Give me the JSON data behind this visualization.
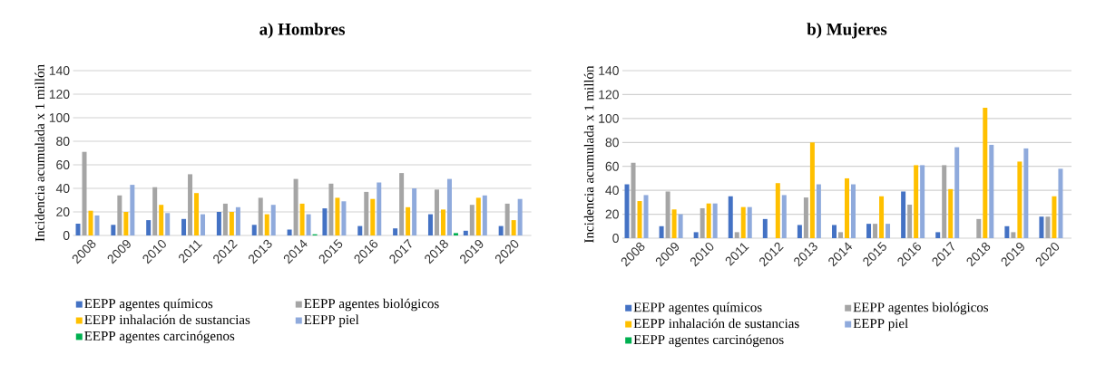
{
  "chart_data": [
    {
      "type": "bar",
      "title": "a) Hombres",
      "ylabel": "Incidencia acumulada x 1 millón",
      "categories": [
        "2008",
        "2009",
        "2010",
        "2011",
        "2012",
        "2013",
        "2014",
        "2015",
        "2016",
        "2017",
        "2018",
        "2019",
        "2020"
      ],
      "ylim": [
        0,
        140
      ],
      "yticks": [
        0,
        20,
        40,
        60,
        80,
        100,
        120,
        140
      ],
      "grid": "y",
      "legend": "bottom",
      "series": [
        {
          "name": "EEPP agentes químicos",
          "color": "#4472c4",
          "values": [
            10,
            9,
            13,
            14,
            20,
            9,
            5,
            23,
            8,
            6,
            18,
            4,
            8
          ]
        },
        {
          "name": "EEPP agentes biológicos",
          "color": "#a5a5a5",
          "values": [
            71,
            34,
            41,
            52,
            27,
            32,
            48,
            44,
            37,
            53,
            39,
            26,
            27
          ]
        },
        {
          "name": "EEPP inhalación de sustancias",
          "color": "#ffc000",
          "values": [
            21,
            20,
            26,
            36,
            20,
            18,
            27,
            32,
            31,
            24,
            22,
            32,
            13
          ]
        },
        {
          "name": "EEPP piel",
          "color": "#8faadc",
          "values": [
            17,
            43,
            19,
            18,
            24,
            26,
            18,
            29,
            45,
            40,
            48,
            34,
            31
          ]
        },
        {
          "name": "EEPP agentes carcinógenos",
          "color": "#00b050",
          "values": [
            null,
            null,
            null,
            null,
            null,
            null,
            1,
            null,
            null,
            null,
            2,
            null,
            null
          ]
        }
      ]
    },
    {
      "type": "bar",
      "title": "b) Mujeres",
      "ylabel": "Incidencia acumulada x 1 millón",
      "categories": [
        "2008",
        "2009",
        "2010",
        "2011",
        "2012",
        "2013",
        "2014",
        "2015",
        "2016",
        "2017",
        "2018",
        "2019",
        "2020"
      ],
      "ylim": [
        0,
        140
      ],
      "yticks": [
        0,
        20,
        40,
        60,
        80,
        100,
        120,
        140
      ],
      "grid": "y",
      "legend": "bottom",
      "series": [
        {
          "name": "EEPP agentes químicos",
          "color": "#4472c4",
          "values": [
            45,
            10,
            5,
            35,
            16,
            11,
            11,
            12,
            39,
            5,
            null,
            10,
            18
          ]
        },
        {
          "name": "EEPP agentes biológicos",
          "color": "#a5a5a5",
          "values": [
            63,
            39,
            25,
            5,
            null,
            34,
            5,
            12,
            28,
            61,
            16,
            5,
            18
          ]
        },
        {
          "name": "EEPP inhalación de sustancias",
          "color": "#ffc000",
          "values": [
            31,
            24,
            29,
            26,
            46,
            80,
            50,
            35,
            61,
            41,
            109,
            64,
            35
          ]
        },
        {
          "name": "EEPP piel",
          "color": "#8faadc",
          "values": [
            36,
            20,
            29,
            26,
            36,
            45,
            45,
            12,
            61,
            76,
            78,
            75,
            58
          ]
        },
        {
          "name": "EEPP agentes carcinógenos",
          "color": "#00b050",
          "values": [
            null,
            null,
            null,
            null,
            null,
            null,
            null,
            null,
            null,
            null,
            null,
            null,
            null
          ]
        }
      ]
    }
  ]
}
